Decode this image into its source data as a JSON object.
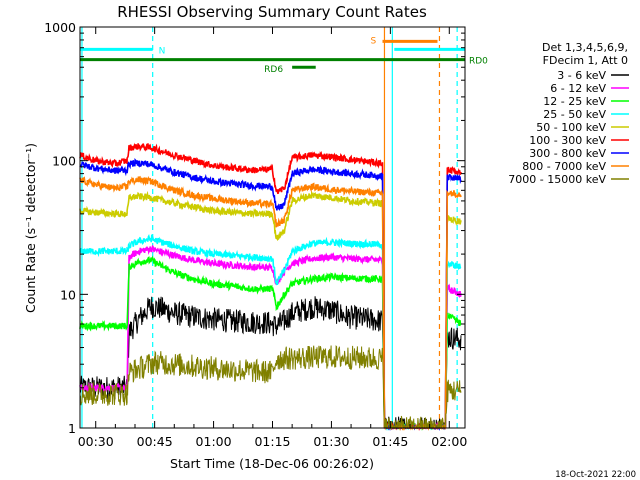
{
  "chart_data": {
    "type": "line",
    "title": "RHESSI Observing Summary Count Rates",
    "xlabel": "Start Time (18-Dec-06 00:26:02)",
    "ylabel": "Count Rate (s⁻¹ detector⁻¹)",
    "yscale": "log",
    "ylim": [
      1,
      1000
    ],
    "xlim_minutes": [
      26,
      124
    ],
    "x_ticks": [
      {
        "minute": 30,
        "label": "00:30"
      },
      {
        "minute": 45,
        "label": "00:45"
      },
      {
        "minute": 60,
        "label": "01:00"
      },
      {
        "minute": 75,
        "label": "01:15"
      },
      {
        "minute": 90,
        "label": "01:30"
      },
      {
        "minute": 105,
        "label": "01:45"
      },
      {
        "minute": 120,
        "label": "02:00"
      }
    ],
    "y_ticks": [
      {
        "value": 1,
        "label": "1"
      },
      {
        "value": 10,
        "label": "10"
      },
      {
        "value": 100,
        "label": "100"
      },
      {
        "value": 1000,
        "label": "1000"
      }
    ],
    "legend_header": [
      "Det 1,3,4,5,6,9,",
      "FDecim 1, Att 0"
    ],
    "legend_position": "right",
    "series": [
      {
        "name": "3 - 6 keV",
        "color": "#000000",
        "x": [
          26,
          38,
          38.5,
          41,
          44,
          47,
          50,
          55,
          60,
          65,
          70,
          74,
          76,
          78,
          80,
          85,
          90,
          92,
          94,
          103,
          103.5,
          119,
          119.5,
          123
        ],
        "y": [
          2,
          2,
          5.2,
          6.5,
          8.2,
          7.8,
          7.2,
          6.8,
          6.5,
          6.3,
          6.2,
          6.1,
          5.8,
          6.3,
          7.2,
          8,
          7.6,
          7.2,
          6.8,
          6.3,
          1,
          1,
          4.8,
          4.6
        ]
      },
      {
        "name": "6 - 12 keV",
        "color": "#ff00ff",
        "x": [
          26,
          38,
          38.5,
          41,
          44,
          50,
          55,
          60,
          65,
          70,
          75,
          76,
          78,
          80,
          85,
          90,
          95,
          103,
          103.5,
          119,
          119.5,
          123
        ],
        "y": [
          2,
          2,
          19,
          21,
          22,
          19.5,
          18,
          17,
          16.5,
          16,
          15.8,
          12,
          15,
          17,
          18.5,
          19,
          18.5,
          18,
          1,
          1,
          11,
          10
        ]
      },
      {
        "name": "12 - 25 keV",
        "color": "#00ff00",
        "x": [
          26,
          38,
          38.5,
          41,
          44,
          50,
          55,
          60,
          65,
          70,
          75,
          76,
          78,
          80,
          85,
          90,
          95,
          103,
          103.5,
          119,
          119.5,
          123
        ],
        "y": [
          5.8,
          5.8,
          16,
          17.5,
          18,
          14.5,
          13,
          12,
          11.5,
          11,
          11,
          8,
          10,
          12,
          13,
          13.5,
          13.2,
          13,
          1,
          1,
          7,
          6
        ]
      },
      {
        "name": "25 - 50 keV",
        "color": "#00ffff",
        "x": [
          26,
          38,
          38.5,
          41,
          44,
          50,
          55,
          60,
          65,
          70,
          75,
          76,
          78,
          80,
          85,
          90,
          95,
          103,
          103.5,
          119,
          119.5,
          123
        ],
        "y": [
          21,
          21,
          23,
          25,
          26,
          23,
          21,
          20,
          19.5,
          19,
          18.5,
          12,
          15,
          21,
          24,
          24.5,
          24,
          23.5,
          1,
          1,
          17,
          16
        ]
      },
      {
        "name": "50 - 100 keV",
        "color": "#cccc00",
        "x": [
          26,
          30,
          35,
          38,
          38.5,
          41,
          44,
          50,
          55,
          60,
          65,
          70,
          75,
          76,
          78,
          80,
          85,
          90,
          95,
          103,
          103.5,
          119,
          119.5,
          123
        ],
        "y": [
          42,
          41,
          40,
          40,
          53,
          54,
          53,
          48,
          45,
          42,
          41,
          40,
          40,
          26,
          30,
          50,
          55,
          53,
          50,
          48,
          1,
          1,
          37,
          35
        ]
      },
      {
        "name": "100 - 300 keV",
        "color": "#ff0000",
        "x": [
          26,
          30,
          35,
          38,
          38.5,
          41,
          44,
          50,
          55,
          60,
          65,
          70,
          75,
          76,
          78,
          80,
          85,
          90,
          95,
          103,
          103.5,
          119,
          119.5,
          123
        ],
        "y": [
          110,
          100,
          95,
          100,
          125,
          128,
          125,
          110,
          100,
          92,
          88,
          85,
          86,
          58,
          62,
          105,
          110,
          107,
          102,
          95,
          1,
          1,
          85,
          82
        ]
      },
      {
        "name": "300 - 800 keV",
        "color": "#0000ff",
        "x": [
          26,
          30,
          35,
          38,
          38.5,
          41,
          44,
          50,
          55,
          60,
          65,
          70,
          75,
          76,
          78,
          80,
          85,
          90,
          95,
          103,
          103.5,
          119,
          119.5,
          123
        ],
        "y": [
          94,
          88,
          84,
          85,
          95,
          96,
          94,
          82,
          75,
          70,
          67,
          65,
          64,
          43,
          47,
          80,
          86,
          83,
          80,
          77,
          1,
          1,
          75,
          72
        ]
      },
      {
        "name": "800 - 7000 keV",
        "color": "#ff8000",
        "x": [
          26,
          30,
          35,
          38,
          38.5,
          41,
          44,
          50,
          55,
          60,
          65,
          70,
          75,
          76,
          78,
          80,
          85,
          90,
          95,
          103,
          103.5,
          119,
          119.5,
          123
        ],
        "y": [
          72,
          66,
          62,
          64,
          70,
          72,
          70,
          60,
          55,
          52,
          50,
          48,
          47,
          33,
          36,
          60,
          64,
          61,
          59,
          57,
          1,
          1,
          58,
          56
        ]
      },
      {
        "name": "7000 - 15000 keV",
        "color": "#808000",
        "x": [
          26,
          38,
          38.5,
          45,
          60,
          75,
          76,
          90,
          103,
          103.5,
          119,
          119.5,
          123
        ],
        "y": [
          1.8,
          1.8,
          2.6,
          3.1,
          2.8,
          2.6,
          3.3,
          3.4,
          3.3,
          1,
          1,
          1.9,
          1.9
        ]
      }
    ],
    "annotations": [
      {
        "label": "N",
        "color": "#00ffff",
        "x_start": 26,
        "x_end": 44.5,
        "y": 680
      },
      {
        "label": "",
        "color": "#00ffff",
        "x_start": 106,
        "x_end": 124,
        "y": 680
      },
      {
        "label": "RD0",
        "color": "#008000",
        "x_start": 26,
        "x_end": 124,
        "y": 570
      },
      {
        "label": "RD6",
        "color": "#008000",
        "x_start": 80,
        "x_end": 86,
        "y": 500
      },
      {
        "label": "S",
        "color": "#ff8000",
        "x_start": 103,
        "x_end": 117,
        "y": 780
      }
    ],
    "markers": [
      {
        "minute": 44.5,
        "color": "#00ffff",
        "style": "dashed"
      },
      {
        "minute": 103.5,
        "color": "#ff8000",
        "style": "solid"
      },
      {
        "minute": 105.5,
        "color": "#00ffff",
        "style": "solid"
      },
      {
        "minute": 117.5,
        "color": "#ff8000",
        "style": "dashed"
      },
      {
        "minute": 122,
        "color": "#00ffff",
        "style": "dashed"
      },
      {
        "minute": 26.5,
        "color": "#00ffff",
        "style": "solid"
      }
    ],
    "grid": false
  },
  "footer": {
    "timestamp": "18-Oct-2021 22:00"
  }
}
